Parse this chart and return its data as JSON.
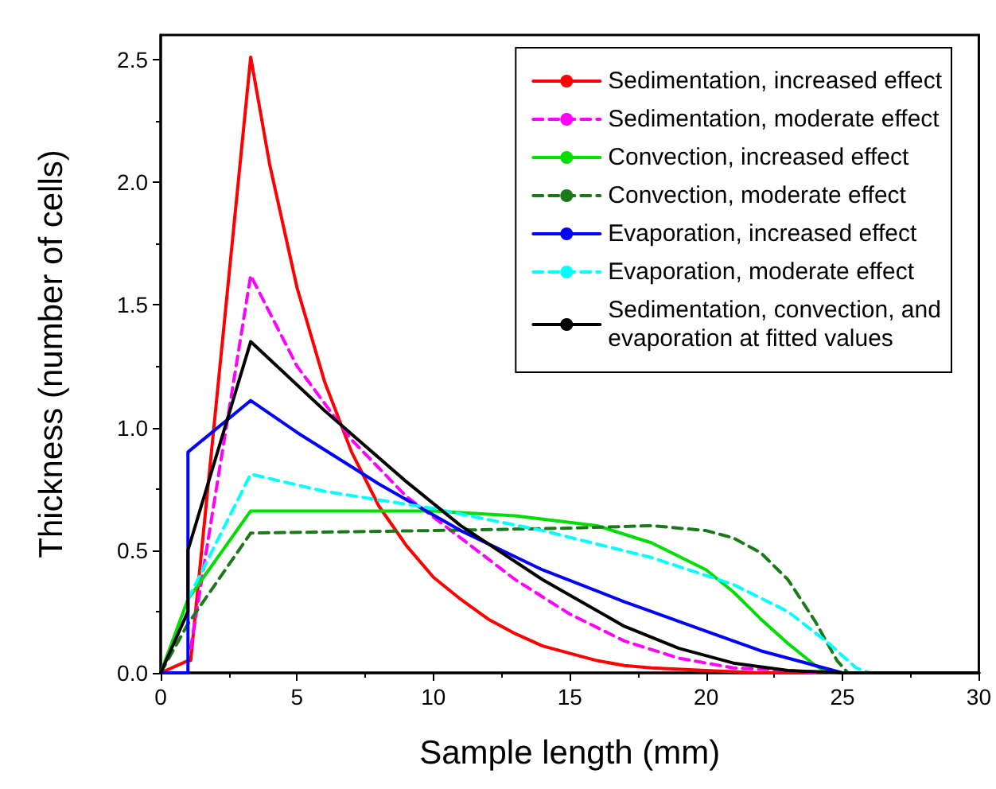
{
  "chart_data": {
    "type": "line",
    "xlabel": "Sample length (mm)",
    "ylabel": "Thickness (number of cells)",
    "xlim": [
      0,
      30
    ],
    "xticks": [
      0,
      5,
      10,
      15,
      20,
      25,
      30
    ],
    "ylim": [
      0,
      2.6
    ],
    "yticks": [
      {
        "value": 0,
        "label": "0.0"
      },
      {
        "value": 0.5,
        "label": "0.5"
      },
      {
        "value": 1,
        "label": "1.0"
      },
      {
        "value": 1.5,
        "label": "1.5"
      },
      {
        "value": 2,
        "label": "2.0"
      },
      {
        "value": 2.5,
        "label": "2.5"
      }
    ],
    "grid": false,
    "legend": "top right",
    "marker": "none",
    "series": [
      {
        "name": "Sedimentation, increased effect",
        "color": "#ff0000",
        "line_style": "solid",
        "x": [
          0,
          1,
          1.1,
          3.3,
          4,
          5,
          6,
          7,
          8,
          9,
          10,
          11,
          12,
          13,
          14,
          15,
          16,
          17,
          18,
          20,
          22,
          30
        ],
        "values": [
          0,
          0.05,
          0.05,
          2.51,
          2.07,
          1.57,
          1.19,
          0.9,
          0.68,
          0.52,
          0.39,
          0.3,
          0.22,
          0.16,
          0.11,
          0.08,
          0.05,
          0.03,
          0.02,
          0.01,
          0,
          0
        ]
      },
      {
        "name": "Sedimentation, moderate effect",
        "color": "#ff00ff",
        "line_style": "dashed",
        "x": [
          1.1,
          3.3,
          5,
          7,
          9,
          11,
          13,
          15,
          17,
          19,
          21,
          23,
          24
        ],
        "values": [
          0.1,
          1.62,
          1.25,
          0.95,
          0.72,
          0.55,
          0.38,
          0.24,
          0.13,
          0.06,
          0.02,
          0.01,
          0
        ]
      },
      {
        "name": "Convection, increased effect",
        "color": "#00dd00",
        "line_style": "solid",
        "x": [
          0,
          1,
          3.3,
          10,
          13,
          16,
          18,
          20,
          21,
          22,
          23,
          24,
          24.5,
          30
        ],
        "values": [
          0,
          0.3,
          0.66,
          0.66,
          0.64,
          0.6,
          0.53,
          0.42,
          0.33,
          0.22,
          0.12,
          0.03,
          0,
          0
        ]
      },
      {
        "name": "Convection, moderate effect",
        "color": "#1a7a1a",
        "line_style": "dashed",
        "x": [
          0,
          1,
          3.3,
          10,
          15,
          18,
          20,
          21,
          22,
          23,
          24,
          24.8,
          25.2
        ],
        "values": [
          0,
          0.2,
          0.57,
          0.58,
          0.59,
          0.6,
          0.58,
          0.55,
          0.49,
          0.38,
          0.21,
          0.05,
          0
        ]
      },
      {
        "name": "Evaporation, increased effect",
        "color": "#0000ff",
        "line_style": "solid",
        "x": [
          0,
          1,
          1,
          3.3,
          5,
          8,
          11,
          14,
          17,
          20,
          22,
          24,
          25,
          30
        ],
        "values": [
          0,
          0,
          0.9,
          1.11,
          0.98,
          0.77,
          0.58,
          0.42,
          0.29,
          0.17,
          0.09,
          0.03,
          0,
          0
        ]
      },
      {
        "name": "Evaporation, moderate effect",
        "color": "#00ffff",
        "line_style": "dashed",
        "x": [
          1,
          3.3,
          6,
          10,
          14,
          18,
          21,
          23,
          24.5,
          25.5,
          26
        ],
        "values": [
          0.3,
          0.81,
          0.74,
          0.67,
          0.58,
          0.47,
          0.36,
          0.25,
          0.12,
          0.02,
          0
        ]
      },
      {
        "name": "Sedimentation, convection, and\nevaporation at fitted values",
        "color": "#000000",
        "line_style": "solid",
        "x": [
          0,
          1,
          1,
          3.3,
          6,
          9,
          11,
          14,
          17,
          19,
          21,
          23,
          25,
          30
        ],
        "values": [
          0,
          0.25,
          0.5,
          1.35,
          1.07,
          0.78,
          0.6,
          0.38,
          0.19,
          0.1,
          0.04,
          0.01,
          0,
          0
        ]
      }
    ]
  }
}
